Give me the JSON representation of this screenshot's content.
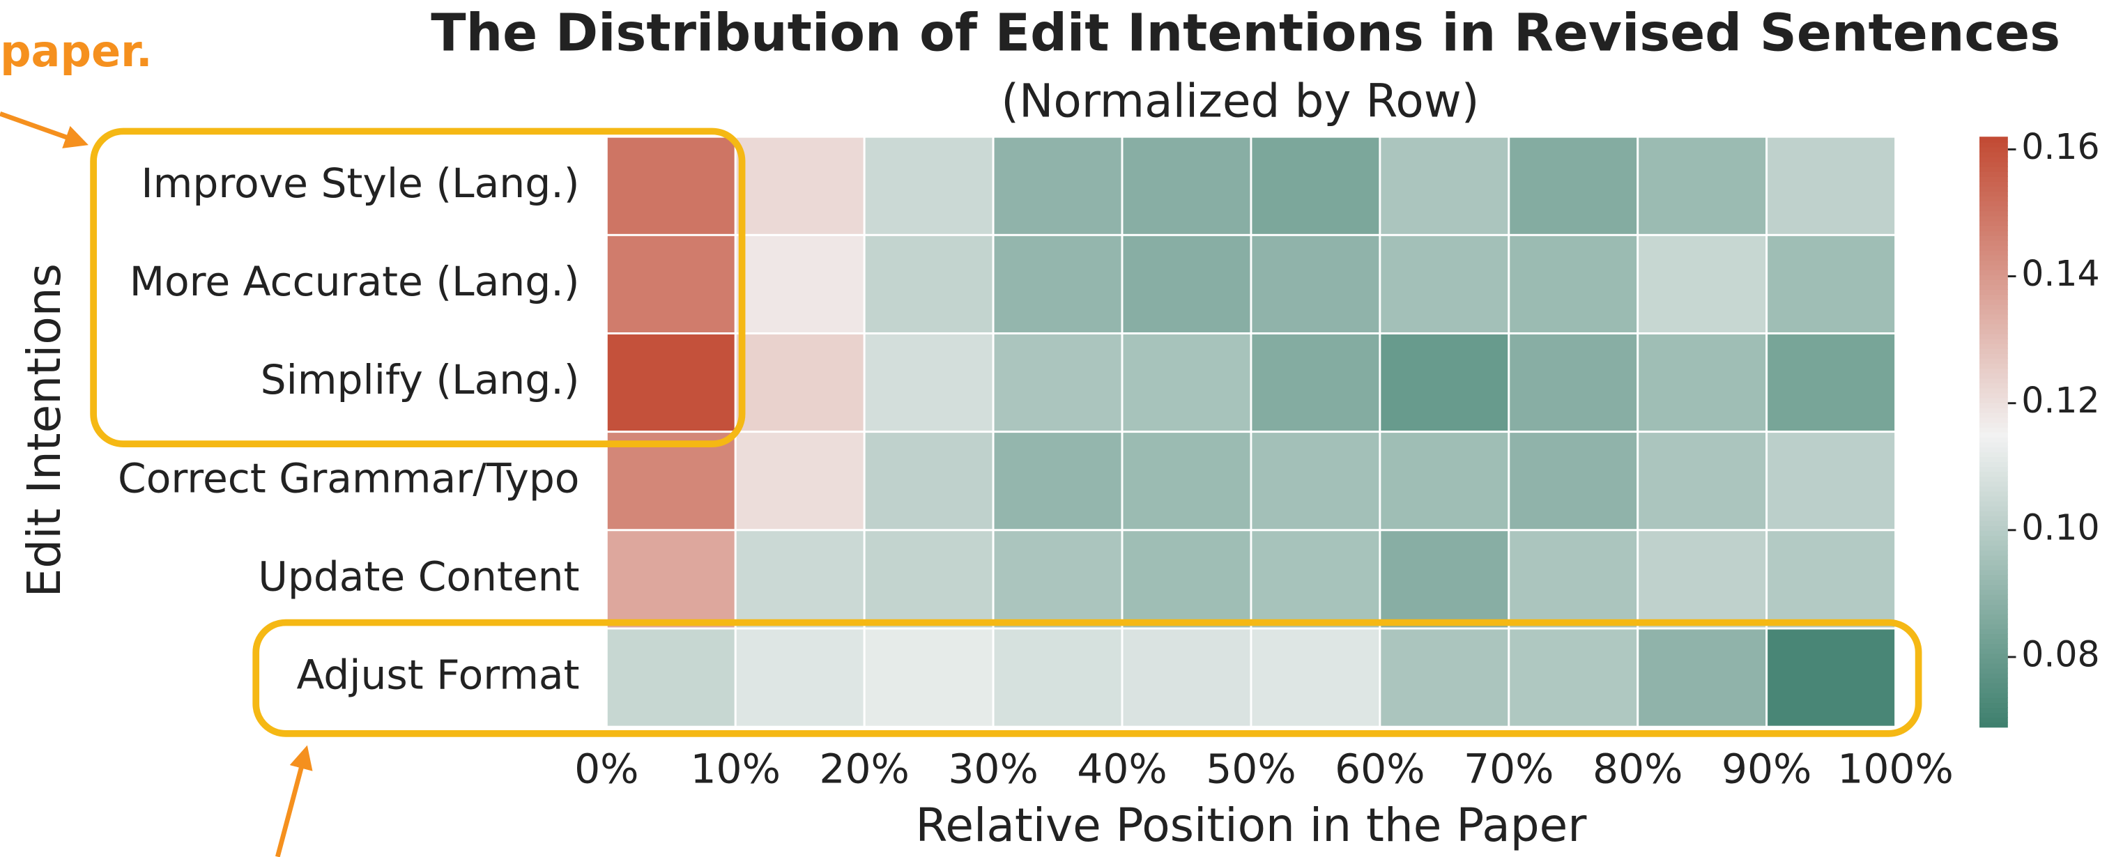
{
  "annotations": [
    "paper."
  ],
  "chart_data": {
    "type": "heatmap",
    "title": "The Distribution of Edit Intentions in Revised Sentences",
    "subtitle": "(Normalized by Row)",
    "xlabel": "Relative Position in the Paper",
    "ylabel": "Edit Intentions",
    "categories": [
      "Improve Style (Lang.)",
      "More Accurate (Lang.)",
      "Simplify (Lang.)",
      "Correct Grammar/Typo",
      "Update Content",
      "Adjust Format"
    ],
    "xlim": [
      0,
      100
    ],
    "xticks": [
      {
        "value": 0,
        "label": "0%"
      },
      {
        "value": 10,
        "label": "10%"
      },
      {
        "value": 20,
        "label": "20%"
      },
      {
        "value": 30,
        "label": "30%"
      },
      {
        "value": 40,
        "label": "40%"
      },
      {
        "value": 50,
        "label": "50%"
      },
      {
        "value": 60,
        "label": "60%"
      },
      {
        "value": 70,
        "label": "70%"
      },
      {
        "value": 80,
        "label": "80%"
      },
      {
        "value": 90,
        "label": "90%"
      },
      {
        "value": 100,
        "label": "100%"
      }
    ],
    "values": [
      [
        0.15,
        0.122,
        0.105,
        0.09,
        0.088,
        0.085,
        0.097,
        0.087,
        0.093,
        0.102
      ],
      [
        0.148,
        0.118,
        0.103,
        0.091,
        0.088,
        0.09,
        0.095,
        0.093,
        0.104,
        0.094
      ],
      [
        0.16,
        0.124,
        0.107,
        0.097,
        0.096,
        0.087,
        0.08,
        0.088,
        0.094,
        0.084
      ],
      [
        0.145,
        0.121,
        0.102,
        0.091,
        0.093,
        0.095,
        0.094,
        0.09,
        0.097,
        0.101
      ],
      [
        0.136,
        0.105,
        0.103,
        0.097,
        0.094,
        0.096,
        0.088,
        0.097,
        0.102,
        0.099
      ],
      [
        0.104,
        0.11,
        0.112,
        0.108,
        0.109,
        0.11,
        0.097,
        0.098,
        0.09,
        0.072
      ]
    ],
    "clim": [
      0.069,
      0.162
    ],
    "center": 0.115,
    "colors": {
      "low": "#3d7f6d",
      "mid": "#f2f2f2",
      "high": "#c24a33"
    },
    "cticks": [
      0.08,
      {
        "value": 0.1,
        "label": "0.10"
      },
      0.12,
      0.14,
      0.16
    ]
  }
}
